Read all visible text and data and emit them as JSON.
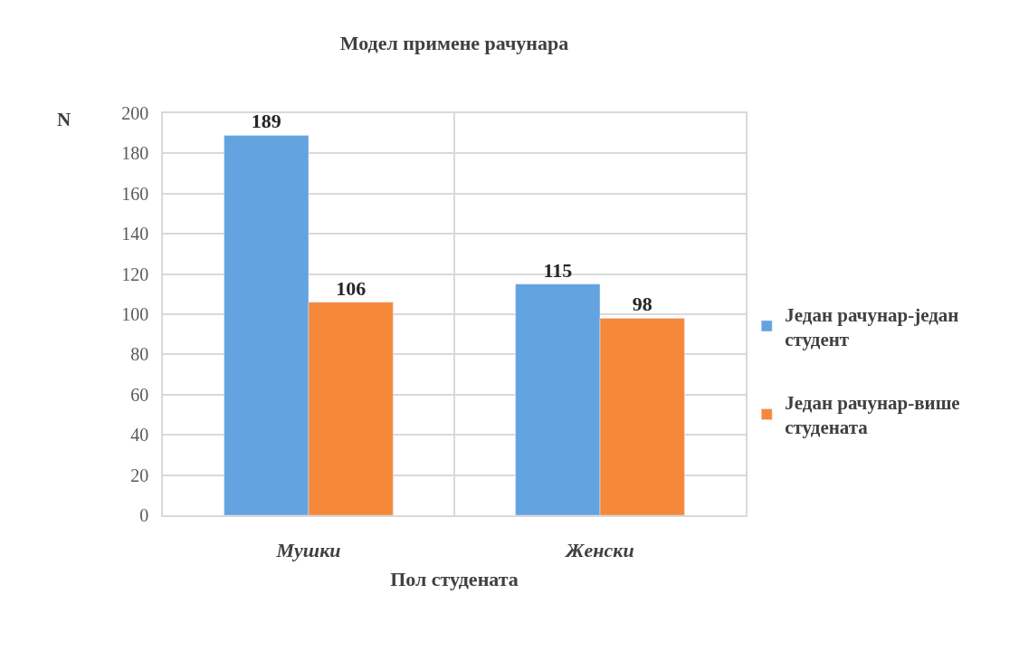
{
  "chart_data": {
    "type": "bar",
    "title": "Модел примене рачунара",
    "xlabel": "Пол студената",
    "ylabel": "N",
    "categories": [
      "Мушки",
      "Женски"
    ],
    "series": [
      {
        "name": "Један рачунар-један студент",
        "color": "#62a3e0",
        "values": [
          189,
          115
        ]
      },
      {
        "name": "Један рачунар-више студената",
        "color": "#f6883a",
        "values": [
          106,
          98
        ]
      }
    ],
    "ylim": [
      0,
      200
    ],
    "yticks": [
      0,
      20,
      40,
      60,
      80,
      100,
      120,
      140,
      160,
      180,
      200
    ],
    "grid": true,
    "legend": "right",
    "data_labels": true
  }
}
